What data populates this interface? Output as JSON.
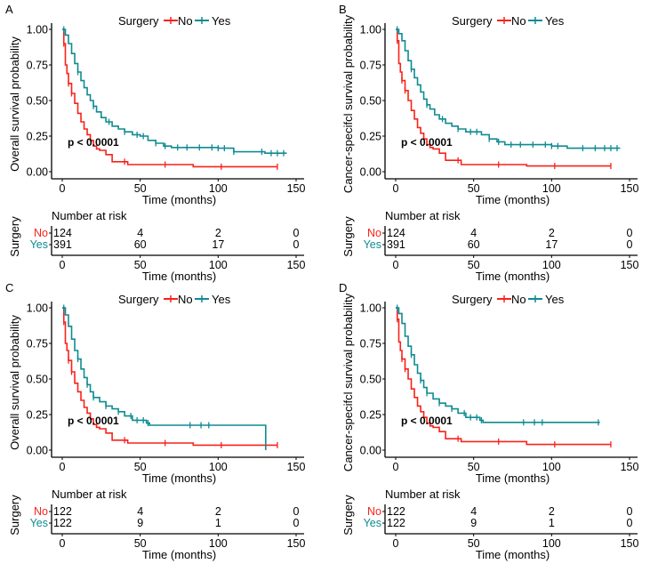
{
  "colors": {
    "no": "#f8221a",
    "yes": "#0f8b92",
    "axis": "#000000"
  },
  "chart_data": [
    {
      "panel": "A",
      "type": "line",
      "subtype": "kaplan-meier",
      "ylabel": "Overall survival probability",
      "xlabel": "Time (months)",
      "xlim": [
        0,
        150
      ],
      "ylim": [
        0,
        1
      ],
      "xticks": [
        "0",
        "50",
        "100",
        "150"
      ],
      "yticks": [
        "0.00",
        "0.25",
        "0.50",
        "0.75",
        "1.00"
      ],
      "legend": {
        "title": "Surgery",
        "entries": [
          "No",
          "Yes"
        ],
        "position": "top"
      },
      "annotation": "p < 0.0001",
      "series": [
        {
          "name": "No",
          "color_key": "no",
          "x": [
            0,
            1,
            2,
            3,
            4,
            6,
            8,
            10,
            12,
            14,
            16,
            18,
            20,
            22,
            24,
            28,
            32,
            42,
            84,
            138
          ],
          "y": [
            1.0,
            0.9,
            0.75,
            0.69,
            0.62,
            0.55,
            0.48,
            0.41,
            0.35,
            0.3,
            0.26,
            0.22,
            0.18,
            0.16,
            0.15,
            0.12,
            0.07,
            0.05,
            0.035,
            0.035
          ],
          "censor_x": [
            1,
            4,
            6,
            40,
            66,
            102,
            138
          ]
        },
        {
          "name": "Yes",
          "color_key": "yes",
          "x": [
            0,
            2,
            4,
            6,
            8,
            10,
            12,
            14,
            16,
            18,
            20,
            22,
            25,
            28,
            32,
            36,
            40,
            45,
            50,
            55,
            60,
            65,
            70,
            80,
            90,
            100,
            110,
            125,
            130,
            144
          ],
          "y": [
            1.0,
            0.96,
            0.9,
            0.83,
            0.76,
            0.7,
            0.64,
            0.59,
            0.54,
            0.5,
            0.46,
            0.42,
            0.38,
            0.35,
            0.32,
            0.3,
            0.28,
            0.26,
            0.25,
            0.22,
            0.2,
            0.18,
            0.17,
            0.17,
            0.17,
            0.165,
            0.14,
            0.14,
            0.13,
            0.13
          ],
          "censor_x": [
            1,
            10,
            20,
            30,
            40,
            48,
            52,
            60,
            66,
            74,
            80,
            88,
            96,
            100,
            104,
            110,
            128,
            134,
            138,
            142
          ]
        }
      ],
      "risk_table": {
        "title": "Number at risk",
        "group_label": "Surgery",
        "times": [
          "0",
          "50",
          "100",
          "150"
        ],
        "rows": [
          {
            "label": "No",
            "values": [
              "124",
              "4",
              "2",
              "0"
            ]
          },
          {
            "label": "Yes",
            "values": [
              "391",
              "60",
              "17",
              "0"
            ]
          }
        ],
        "xlabel": "Time (months)"
      }
    },
    {
      "panel": "B",
      "type": "line",
      "subtype": "kaplan-meier",
      "ylabel": "Cancer-specifcl survival probability",
      "xlabel": "Time (months)",
      "xlim": [
        0,
        150
      ],
      "ylim": [
        0,
        1
      ],
      "xticks": [
        "0",
        "50",
        "100",
        "150"
      ],
      "yticks": [
        "0.00",
        "0.25",
        "0.50",
        "0.75",
        "1.00"
      ],
      "legend": {
        "title": "Surgery",
        "entries": [
          "No",
          "Yes"
        ],
        "position": "top"
      },
      "annotation": "p < 0.0001",
      "series": [
        {
          "name": "No",
          "color_key": "no",
          "x": [
            0,
            1,
            2,
            3,
            4,
            6,
            8,
            10,
            12,
            14,
            16,
            18,
            20,
            22,
            24,
            28,
            32,
            42,
            84,
            138
          ],
          "y": [
            1.0,
            0.92,
            0.76,
            0.7,
            0.64,
            0.57,
            0.5,
            0.43,
            0.37,
            0.31,
            0.27,
            0.23,
            0.19,
            0.17,
            0.16,
            0.13,
            0.08,
            0.05,
            0.04,
            0.04
          ],
          "censor_x": [
            1,
            4,
            6,
            40,
            66,
            102,
            138
          ]
        },
        {
          "name": "Yes",
          "color_key": "yes",
          "x": [
            0,
            2,
            4,
            6,
            8,
            10,
            12,
            14,
            16,
            18,
            20,
            22,
            25,
            28,
            32,
            36,
            40,
            45,
            50,
            55,
            60,
            65,
            70,
            80,
            90,
            100,
            110,
            144
          ],
          "y": [
            1.0,
            0.97,
            0.92,
            0.85,
            0.78,
            0.72,
            0.66,
            0.61,
            0.56,
            0.51,
            0.47,
            0.44,
            0.4,
            0.37,
            0.34,
            0.32,
            0.3,
            0.28,
            0.28,
            0.26,
            0.23,
            0.21,
            0.19,
            0.19,
            0.19,
            0.18,
            0.165,
            0.165
          ],
          "censor_x": [
            1,
            10,
            20,
            30,
            40,
            48,
            52,
            60,
            66,
            74,
            80,
            88,
            96,
            100,
            104,
            120,
            128,
            134,
            138,
            142
          ]
        }
      ],
      "risk_table": {
        "title": "Number at risk",
        "group_label": "Surgery",
        "times": [
          "0",
          "50",
          "100",
          "150"
        ],
        "rows": [
          {
            "label": "No",
            "values": [
              "124",
              "4",
              "2",
              "0"
            ]
          },
          {
            "label": "Yes",
            "values": [
              "391",
              "60",
              "17",
              "0"
            ]
          }
        ],
        "xlabel": "Time (months)"
      }
    },
    {
      "panel": "C",
      "type": "line",
      "subtype": "kaplan-meier",
      "ylabel": "Overall survival probability",
      "xlabel": "Time (months)",
      "xlim": [
        0,
        150
      ],
      "ylim": [
        0,
        1
      ],
      "xticks": [
        "0",
        "50",
        "100",
        "150"
      ],
      "yticks": [
        "0.00",
        "0.25",
        "0.50",
        "0.75",
        "1.00"
      ],
      "legend": {
        "title": "Surgery",
        "entries": [
          "No",
          "Yes"
        ],
        "position": "top"
      },
      "annotation": "p < 0.0001",
      "series": [
        {
          "name": "No",
          "color_key": "no",
          "x": [
            0,
            1,
            2,
            3,
            4,
            6,
            8,
            10,
            12,
            14,
            16,
            18,
            20,
            22,
            24,
            28,
            32,
            42,
            84,
            138
          ],
          "y": [
            1.0,
            0.9,
            0.75,
            0.7,
            0.63,
            0.55,
            0.47,
            0.41,
            0.35,
            0.3,
            0.26,
            0.22,
            0.18,
            0.16,
            0.15,
            0.12,
            0.07,
            0.05,
            0.035,
            0.035
          ],
          "censor_x": [
            1,
            4,
            6,
            40,
            66,
            102,
            138
          ]
        },
        {
          "name": "Yes",
          "color_key": "yes",
          "x": [
            0,
            2,
            4,
            6,
            8,
            10,
            12,
            14,
            16,
            18,
            20,
            24,
            28,
            32,
            36,
            40,
            45,
            50,
            54,
            56,
            130,
            130.5
          ],
          "y": [
            1.0,
            0.95,
            0.87,
            0.78,
            0.7,
            0.64,
            0.57,
            0.51,
            0.46,
            0.41,
            0.37,
            0.34,
            0.31,
            0.29,
            0.27,
            0.24,
            0.21,
            0.21,
            0.19,
            0.175,
            0.175,
            0.0
          ],
          "censor_x": [
            1,
            10,
            16,
            20,
            28,
            36,
            44,
            48,
            52,
            55,
            82,
            89,
            94
          ]
        }
      ],
      "risk_table": {
        "title": "Number at risk",
        "group_label": "Surgery",
        "times": [
          "0",
          "50",
          "100",
          "150"
        ],
        "rows": [
          {
            "label": "No",
            "values": [
              "122",
              "4",
              "2",
              "0"
            ]
          },
          {
            "label": "Yes",
            "values": [
              "122",
              "9",
              "1",
              "0"
            ]
          }
        ],
        "xlabel": "Time (months)"
      }
    },
    {
      "panel": "D",
      "type": "line",
      "subtype": "kaplan-meier",
      "ylabel": "Cancer-specifcl survival probability",
      "xlabel": "Time (months)",
      "xlim": [
        0,
        150
      ],
      "ylim": [
        0,
        1
      ],
      "xticks": [
        "0",
        "50",
        "100",
        "150"
      ],
      "yticks": [
        "0.00",
        "0.25",
        "0.50",
        "0.75",
        "1.00"
      ],
      "legend": {
        "title": "Surgery",
        "entries": [
          "No",
          "Yes"
        ],
        "position": "top"
      },
      "annotation": "p < 0.0001",
      "series": [
        {
          "name": "No",
          "color_key": "no",
          "x": [
            0,
            1,
            2,
            3,
            4,
            6,
            8,
            10,
            12,
            14,
            16,
            18,
            20,
            22,
            24,
            28,
            32,
            42,
            84,
            138
          ],
          "y": [
            1.0,
            0.92,
            0.76,
            0.7,
            0.64,
            0.57,
            0.5,
            0.43,
            0.37,
            0.31,
            0.27,
            0.23,
            0.19,
            0.17,
            0.16,
            0.13,
            0.08,
            0.06,
            0.04,
            0.04
          ],
          "censor_x": [
            1,
            4,
            6,
            40,
            66,
            102,
            138
          ]
        },
        {
          "name": "Yes",
          "color_key": "yes",
          "x": [
            0,
            2,
            4,
            6,
            8,
            10,
            12,
            14,
            16,
            18,
            20,
            24,
            28,
            32,
            36,
            40,
            45,
            50,
            54,
            56,
            131
          ],
          "y": [
            1.0,
            0.96,
            0.89,
            0.8,
            0.73,
            0.67,
            0.6,
            0.54,
            0.49,
            0.44,
            0.4,
            0.36,
            0.33,
            0.31,
            0.29,
            0.26,
            0.23,
            0.23,
            0.21,
            0.195,
            0.195
          ],
          "censor_x": [
            1,
            10,
            16,
            20,
            28,
            36,
            44,
            48,
            52,
            55,
            82,
            89,
            94,
            130
          ]
        }
      ],
      "risk_table": {
        "title": "Number at risk",
        "group_label": "Surgery",
        "times": [
          "0",
          "50",
          "100",
          "150"
        ],
        "rows": [
          {
            "label": "No",
            "values": [
              "122",
              "4",
              "2",
              "0"
            ]
          },
          {
            "label": "Yes",
            "values": [
              "122",
              "9",
              "1",
              "0"
            ]
          }
        ],
        "xlabel": "Time (months)"
      }
    }
  ]
}
